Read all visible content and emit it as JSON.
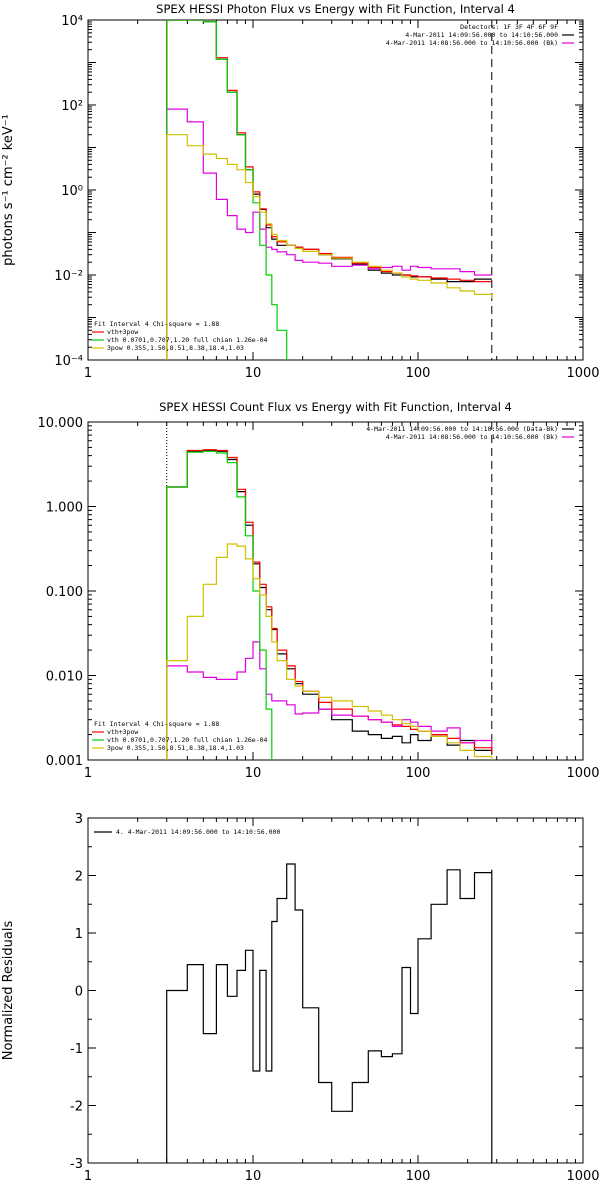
{
  "colors": {
    "observed": "#000000",
    "background": "#e000e0",
    "total_fit": "#ff0000",
    "thermal": "#00d000",
    "powerlaw": "#d0c000",
    "fit_edges": "#000000"
  },
  "chart_data": [
    {
      "type": "line",
      "title": "SPEX HESSI Photon Flux vs Energy with Fit Function, Interval 4",
      "ylabel": "photons s⁻¹ cm⁻² keV⁻¹",
      "xlabel": "",
      "xscale": "log",
      "yscale": "log",
      "xlim": [
        1,
        1000
      ],
      "ylim": [
        0.0001,
        10000
      ],
      "x_ticks": [
        1,
        10,
        100,
        1000
      ],
      "x_tick_labels": [
        "1",
        "10",
        "100",
        "1000"
      ],
      "y_ticks": [
        0.0001,
        0.01,
        1,
        100,
        10000
      ],
      "y_tick_labels": [
        "10⁻⁴",
        "10⁻²",
        "10⁰",
        "10²",
        "10⁴"
      ],
      "fit_range_keV": [
        3.0,
        280.0
      ],
      "legend_top_right": [
        "Detectors: 1F 3F 4F 6F 9F",
        "4-Mar-2011 14:09:56.000 to 14:10:56.000",
        "4-Mar-2011 14:08:56.000 to 14:10:56.000 (Bk)"
      ],
      "legend_bottom_left": [
        "Fit Interval 4    Chi-square = 1.88",
        "vth+3pow",
        "vth  0.0701,0.707,1.20  full chian 1.26e-04",
        "3pow  0.355,1.50,8.51,8.38,18.4,1.03"
      ],
      "series": [
        {
          "name": "Data-Bk",
          "color": "#000000",
          "x": [
            3,
            4,
            5,
            6,
            7,
            8,
            9,
            10,
            11,
            12,
            13,
            14,
            16,
            18,
            20,
            25,
            30,
            40,
            50,
            60,
            70,
            80,
            90,
            100,
            120,
            150,
            180,
            220,
            280
          ],
          "y": [
            10000,
            10000,
            9000,
            1200,
            200,
            20,
            3,
            0.8,
            0.35,
            0.13,
            0.07,
            0.05,
            0.05,
            0.045,
            0.04,
            0.03,
            0.024,
            0.018,
            0.013,
            0.011,
            0.01,
            0.01,
            0.009,
            0.009,
            0.008,
            0.007,
            0.007,
            0.008,
            0.008
          ]
        },
        {
          "name": "vth+3pow",
          "color": "#ff0000",
          "x": [
            3,
            4,
            5,
            6,
            7,
            8,
            9,
            10,
            11,
            12,
            13,
            14,
            16,
            18,
            20,
            25,
            30,
            40,
            50,
            60,
            70,
            80,
            90,
            100,
            120,
            150,
            180,
            220,
            280
          ],
          "y": [
            10000,
            10000,
            9000,
            1300,
            220,
            22,
            3.5,
            0.9,
            0.36,
            0.15,
            0.08,
            0.06,
            0.05,
            0.045,
            0.04,
            0.032,
            0.026,
            0.019,
            0.015,
            0.012,
            0.011,
            0.01,
            0.0095,
            0.009,
            0.0085,
            0.008,
            0.0075,
            0.007,
            0.007
          ]
        },
        {
          "name": "Bk",
          "color": "#e000e0",
          "x": [
            3,
            4,
            5,
            6,
            7,
            8,
            9,
            10,
            11,
            12,
            13,
            14,
            16,
            18,
            20,
            25,
            30,
            40,
            50,
            60,
            70,
            80,
            90,
            100,
            120,
            150,
            180,
            220,
            280
          ],
          "y": [
            80,
            40,
            2.5,
            0.6,
            0.25,
            0.12,
            0.1,
            0.3,
            0.12,
            0.045,
            0.04,
            0.035,
            0.03,
            0.022,
            0.02,
            0.019,
            0.016,
            0.017,
            0.014,
            0.015,
            0.016,
            0.013,
            0.016,
            0.015,
            0.014,
            0.014,
            0.012,
            0.01,
            0.01
          ]
        },
        {
          "name": "vth",
          "color": "#00d000",
          "x": [
            3,
            4,
            5,
            6,
            7,
            8,
            9,
            10,
            11,
            12,
            13,
            14,
            16
          ],
          "y": [
            10000,
            10000,
            9000,
            1200,
            200,
            20,
            3,
            0.5,
            0.05,
            0.01,
            0.002,
            0.0005,
            0.0001
          ]
        },
        {
          "name": "3pow",
          "color": "#d0c000",
          "x": [
            3,
            4,
            5,
            6,
            7,
            8,
            9,
            10,
            11,
            12,
            13,
            14,
            16,
            18,
            20,
            25,
            30,
            40,
            50,
            60,
            70,
            80,
            90,
            100,
            120,
            150,
            180,
            220,
            280
          ],
          "y": [
            20,
            11,
            7,
            5.5,
            4,
            3,
            1.5,
            0.7,
            0.3,
            0.16,
            0.09,
            0.065,
            0.05,
            0.042,
            0.036,
            0.03,
            0.025,
            0.02,
            0.016,
            0.013,
            0.011,
            0.009,
            0.008,
            0.0075,
            0.0065,
            0.005,
            0.0042,
            0.0035,
            0.0028
          ]
        }
      ]
    },
    {
      "type": "line",
      "title": "SPEX HESSI Count Flux vs Energy with Fit Function, Interval 4",
      "ylabel": "",
      "xlabel": "",
      "xscale": "log",
      "yscale": "log",
      "xlim": [
        1,
        1000
      ],
      "ylim": [
        0.001,
        10
      ],
      "x_ticks": [
        1,
        10,
        100,
        1000
      ],
      "x_tick_labels": [
        "1",
        "10",
        "100",
        "1000"
      ],
      "y_ticks": [
        0.001,
        0.01,
        0.1,
        1,
        10
      ],
      "y_tick_labels": [
        "0.001",
        "0.010",
        "0.100",
        "1.000",
        "10.000"
      ],
      "fit_range_keV": [
        3.0,
        280.0
      ],
      "legend_top_right": [
        "4-Mar-2011 14:09:56.000 to 14:10:56.000 (Data-Bk)",
        "4-Mar-2011 14:08:56.000 to 14:10:56.000 (Bk)"
      ],
      "legend_bottom_left": [
        "Fit Interval 4    Chi-square = 1.88",
        "vth+3pow",
        "vth  0.0701,0.707,1.20  full chian 1.26e-04",
        "3pow  0.355,1.50,8.51,8.38,18.4,1.03"
      ],
      "series": [
        {
          "name": "Data-Bk",
          "color": "#000000",
          "x": [
            3,
            4,
            5,
            6,
            7,
            8,
            9,
            10,
            11,
            12,
            13,
            14,
            16,
            18,
            20,
            25,
            30,
            40,
            50,
            60,
            70,
            80,
            90,
            100,
            120,
            150,
            180,
            220,
            280
          ],
          "y": [
            1.7,
            4.5,
            4.6,
            4.5,
            3.6,
            1.5,
            0.6,
            0.21,
            0.11,
            0.06,
            0.035,
            0.018,
            0.012,
            0.008,
            0.006,
            0.004,
            0.003,
            0.0022,
            0.002,
            0.0018,
            0.0019,
            0.0016,
            0.002,
            0.0017,
            0.0019,
            0.0015,
            0.0017,
            0.0013,
            0.0012
          ]
        },
        {
          "name": "vth+3pow",
          "color": "#ff0000",
          "x": [
            3,
            4,
            5,
            6,
            7,
            8,
            9,
            10,
            11,
            12,
            13,
            14,
            16,
            18,
            20,
            25,
            30,
            40,
            50,
            60,
            70,
            80,
            90,
            100,
            120,
            150,
            180,
            220,
            280
          ],
          "y": [
            1.7,
            4.6,
            4.7,
            4.6,
            3.8,
            1.6,
            0.65,
            0.22,
            0.12,
            0.065,
            0.036,
            0.02,
            0.013,
            0.0085,
            0.0065,
            0.0048,
            0.004,
            0.0033,
            0.003,
            0.0028,
            0.0026,
            0.0025,
            0.0023,
            0.0022,
            0.002,
            0.0018,
            0.0016,
            0.0014,
            0.0012
          ]
        },
        {
          "name": "Bk",
          "color": "#e000e0",
          "x": [
            3,
            4,
            5,
            6,
            7,
            8,
            9,
            10,
            11,
            12,
            13,
            14,
            16,
            18,
            20,
            25,
            30,
            40,
            50,
            60,
            70,
            80,
            90,
            100,
            120,
            150,
            180,
            220,
            280
          ],
          "y": [
            0.013,
            0.011,
            0.0095,
            0.009,
            0.009,
            0.011,
            0.016,
            0.025,
            0.012,
            0.006,
            0.005,
            0.005,
            0.0045,
            0.0035,
            0.0036,
            0.004,
            0.0034,
            0.0033,
            0.003,
            0.0028,
            0.0025,
            0.003,
            0.0028,
            0.0025,
            0.0022,
            0.0024,
            0.0016,
            0.0017,
            0.0014
          ]
        },
        {
          "name": "vth",
          "color": "#00d000",
          "x": [
            3,
            4,
            5,
            6,
            7,
            8,
            9,
            10,
            11,
            12,
            13
          ],
          "y": [
            1.7,
            4.4,
            4.5,
            4.3,
            3.3,
            1.3,
            0.45,
            0.1,
            0.02,
            0.004,
            0.001
          ]
        },
        {
          "name": "3pow",
          "color": "#d0c000",
          "x": [
            3,
            4,
            5,
            6,
            7,
            8,
            9,
            10,
            11,
            12,
            13,
            14,
            16,
            18,
            20,
            25,
            30,
            40,
            50,
            60,
            70,
            80,
            90,
            100,
            120,
            150,
            180,
            220,
            280
          ],
          "y": [
            0.015,
            0.05,
            0.12,
            0.25,
            0.36,
            0.34,
            0.24,
            0.14,
            0.09,
            0.05,
            0.025,
            0.015,
            0.009,
            0.0075,
            0.0065,
            0.0055,
            0.005,
            0.0043,
            0.0038,
            0.0034,
            0.003,
            0.0027,
            0.0025,
            0.0022,
            0.0019,
            0.0016,
            0.0013,
            0.0011,
            0.001
          ]
        }
      ]
    },
    {
      "type": "line",
      "title": "",
      "ylabel": "Normalized Residuals",
      "xlabel": "",
      "xscale": "log",
      "yscale": "linear",
      "xlim": [
        1,
        1000
      ],
      "ylim": [
        -3,
        3
      ],
      "x_ticks": [
        1,
        10,
        100,
        1000
      ],
      "x_tick_labels": [
        "1",
        "10",
        "100",
        "1000"
      ],
      "y_ticks": [
        -3,
        -2,
        -1,
        0,
        1,
        2,
        3
      ],
      "y_tick_labels": [
        "-3",
        "-2",
        "-1",
        "0",
        "1",
        "2",
        "3"
      ],
      "fit_range_keV": [
        3.0,
        280.0
      ],
      "legend_top_left": [
        "4.  4-Mar-2011 14:09:56.000 to 14:10:56.000"
      ],
      "series": [
        {
          "name": "4.  4-Mar-2011 14:09:56.000 to 14:10:56.000",
          "color": "#000000",
          "x": [
            3,
            4,
            5,
            6,
            7,
            8,
            9,
            10,
            11,
            12,
            13,
            14,
            16,
            18,
            20,
            25,
            30,
            40,
            50,
            60,
            70,
            80,
            90,
            100,
            120,
            150,
            180,
            220,
            280
          ],
          "y": [
            0,
            0.45,
            -0.75,
            0.45,
            -0.1,
            0.35,
            0.7,
            -1.4,
            0.35,
            -1.4,
            1.2,
            1.6,
            2.2,
            1.4,
            -0.3,
            -1.6,
            -2.1,
            -1.6,
            -1.05,
            -1.15,
            -1.1,
            0.4,
            -0.4,
            0.9,
            1.5,
            2.1,
            1.6,
            2.05,
            2.1
          ]
        }
      ]
    }
  ]
}
